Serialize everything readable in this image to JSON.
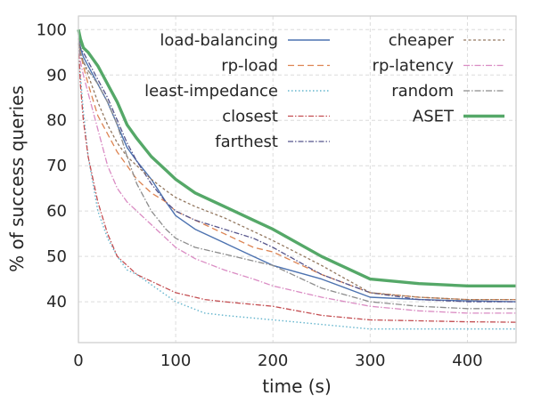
{
  "chart_data": {
    "type": "line",
    "title": "",
    "xlabel": "time (s)",
    "ylabel": "% of success queries",
    "xlim": [
      0,
      450
    ],
    "ylim": [
      31,
      103
    ],
    "xticks": [
      0,
      100,
      200,
      300,
      400
    ],
    "yticks": [
      40,
      50,
      60,
      70,
      80,
      90,
      100
    ],
    "grid": true,
    "legend": "top-right, two columns",
    "series": [
      {
        "name": "load-balancing",
        "color": "#4C72B0",
        "dash": "",
        "width": 1.4,
        "x": [
          0,
          2,
          5,
          10,
          20,
          30,
          40,
          50,
          60,
          75,
          90,
          100,
          120,
          150,
          180,
          200,
          250,
          300,
          350,
          400,
          450
        ],
        "y": [
          99,
          96,
          94,
          92,
          88,
          84,
          79,
          74,
          71,
          67,
          62,
          59,
          56,
          53,
          50,
          48,
          45,
          41,
          40.5,
          40.2,
          40
        ]
      },
      {
        "name": "rp-load",
        "color": "#DD8452",
        "dash": "7,4",
        "width": 1.3,
        "x": [
          0,
          2,
          5,
          10,
          20,
          30,
          40,
          50,
          60,
          75,
          90,
          100,
          120,
          150,
          180,
          200,
          250,
          300,
          350,
          400,
          450
        ],
        "y": [
          98,
          95,
          92,
          88,
          81,
          77,
          73,
          70,
          67,
          64,
          62,
          60,
          58,
          55,
          52,
          51,
          46,
          42,
          41,
          40.5,
          40.5
        ]
      },
      {
        "name": "least-impedance",
        "color": "#64B5CD",
        "dash": "1.5,2.5",
        "width": 1.4,
        "x": [
          0,
          2,
          5,
          10,
          20,
          30,
          40,
          50,
          60,
          80,
          100,
          130,
          150,
          200,
          250,
          300,
          350,
          400,
          450
        ],
        "y": [
          97,
          90,
          82,
          72,
          60,
          54,
          50,
          47,
          46,
          43,
          40,
          37.5,
          37,
          36,
          35,
          34,
          34,
          34,
          34
        ]
      },
      {
        "name": "closest",
        "color": "#C44E52",
        "dash": "6,2,1.5,2",
        "width": 1.3,
        "x": [
          0,
          2,
          5,
          10,
          20,
          30,
          40,
          50,
          60,
          80,
          100,
          130,
          150,
          200,
          250,
          300,
          350,
          400,
          450
        ],
        "y": [
          97,
          88,
          80,
          72,
          62,
          55,
          50,
          48,
          46,
          44,
          42,
          40.5,
          40,
          39,
          37,
          36,
          35.8,
          35.6,
          35.5
        ]
      },
      {
        "name": "farthest",
        "color": "#55548C",
        "dash": "6,2,1.5,2",
        "width": 1.3,
        "x": [
          0,
          2,
          5,
          10,
          20,
          30,
          40,
          50,
          60,
          75,
          90,
          100,
          120,
          150,
          180,
          200,
          250,
          300,
          350,
          400,
          450
        ],
        "y": [
          99,
          96,
          95,
          93,
          89,
          85,
          80,
          75,
          71,
          66,
          62,
          60,
          58,
          56,
          54,
          52,
          46,
          42,
          40.5,
          40,
          40
        ]
      },
      {
        "name": "cheaper",
        "color": "#937860",
        "dash": "3,2.5",
        "width": 1.3,
        "x": [
          0,
          2,
          5,
          10,
          20,
          30,
          40,
          50,
          60,
          75,
          90,
          100,
          120,
          150,
          180,
          200,
          250,
          300,
          350,
          400,
          450
        ],
        "y": [
          98,
          95,
          93,
          90,
          84,
          79,
          75,
          72,
          70,
          67,
          64.5,
          63,
          61,
          58.5,
          55.5,
          53.5,
          48,
          42,
          41,
          40.5,
          40.5
        ]
      },
      {
        "name": "rp-latency",
        "color": "#DA8BC3",
        "dash": "7,2,1.5,2",
        "width": 1.3,
        "x": [
          0,
          2,
          5,
          10,
          20,
          30,
          40,
          50,
          60,
          75,
          90,
          100,
          120,
          150,
          180,
          200,
          250,
          300,
          350,
          400,
          450
        ],
        "y": [
          98,
          93,
          90,
          86,
          78,
          70,
          65,
          62,
          60,
          57,
          54,
          52,
          49.5,
          47,
          45,
          43.5,
          41,
          39,
          38,
          37.5,
          37.5
        ]
      },
      {
        "name": "random",
        "color": "#8C8C8C",
        "dash": "7,2,1.5,2",
        "width": 1.3,
        "x": [
          0,
          2,
          5,
          10,
          20,
          30,
          40,
          50,
          60,
          75,
          90,
          100,
          120,
          150,
          180,
          200,
          250,
          300,
          350,
          400,
          450
        ],
        "y": [
          98,
          94,
          93,
          91,
          88,
          84,
          79,
          72,
          66,
          60,
          56,
          54,
          52,
          50.5,
          49,
          48,
          43,
          40,
          39,
          38.5,
          38.5
        ]
      },
      {
        "name": "ASET",
        "color": "#55A868",
        "dash": "",
        "width": 3.4,
        "x": [
          0,
          2,
          5,
          10,
          20,
          30,
          40,
          50,
          60,
          75,
          90,
          100,
          120,
          150,
          180,
          200,
          250,
          300,
          350,
          400,
          450
        ],
        "y": [
          100,
          98,
          96,
          95,
          92,
          88,
          84,
          79,
          76,
          72,
          69,
          67,
          64,
          61,
          58,
          56,
          50,
          45,
          44,
          43.5,
          43.5
        ]
      }
    ]
  }
}
